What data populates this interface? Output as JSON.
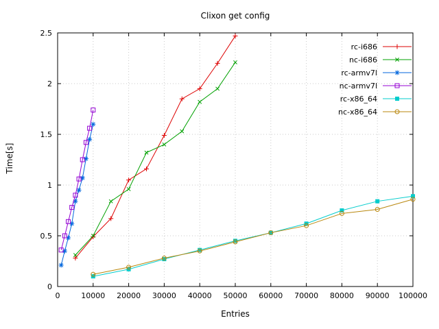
{
  "chart_data": {
    "type": "line",
    "title": "Clixon get config",
    "xlabel": "Entries",
    "ylabel": "Time[s]",
    "xlim": [
      0,
      100000
    ],
    "ylim": [
      0,
      2.5
    ],
    "xticks": [
      0,
      10000,
      20000,
      30000,
      40000,
      50000,
      60000,
      70000,
      80000,
      90000,
      100000
    ],
    "xtick_labels": [
      "0",
      "10000",
      "20000",
      "30000",
      "40000",
      "50000",
      "60000",
      "70000",
      "80000",
      "90000",
      "100000"
    ],
    "yticks": [
      0,
      0.5,
      1,
      1.5,
      2,
      2.5
    ],
    "ytick_labels": [
      "0",
      "0.5",
      "1",
      "1.5",
      "2",
      "2.5"
    ],
    "grid": true,
    "grid_color": "#c8c8c8",
    "axis_color": "#000000",
    "legend_position": "top-right",
    "series": [
      {
        "name": "rc-i686",
        "color": "#dd0000",
        "marker": "plus",
        "x": [
          5000,
          10000,
          15000,
          20000,
          25000,
          30000,
          35000,
          40000,
          45000,
          50000
        ],
        "y": [
          0.28,
          0.49,
          0.67,
          1.05,
          1.16,
          1.49,
          1.85,
          1.95,
          2.2,
          2.47
        ]
      },
      {
        "name": "nc-i686",
        "color": "#00a000",
        "marker": "cross",
        "x": [
          5000,
          10000,
          15000,
          20000,
          25000,
          30000,
          35000,
          40000,
          45000,
          50000
        ],
        "y": [
          0.31,
          0.5,
          0.84,
          0.96,
          1.32,
          1.4,
          1.53,
          1.82,
          1.95,
          2.21
        ]
      },
      {
        "name": "rc-armv7l",
        "color": "#0066dd",
        "marker": "asterisk",
        "x": [
          1000,
          2000,
          3000,
          4000,
          5000,
          6000,
          7000,
          8000,
          9000,
          10000
        ],
        "y": [
          0.21,
          0.35,
          0.48,
          0.62,
          0.84,
          0.95,
          1.07,
          1.26,
          1.45,
          1.6
        ]
      },
      {
        "name": "nc-armv7l",
        "color": "#9400d3",
        "marker": "square-open",
        "x": [
          1000,
          2000,
          3000,
          4000,
          5000,
          6000,
          7000,
          8000,
          9000,
          10000
        ],
        "y": [
          0.36,
          0.5,
          0.64,
          0.78,
          0.9,
          1.06,
          1.25,
          1.42,
          1.56,
          1.74
        ]
      },
      {
        "name": "rc-x86_64",
        "color": "#00cccc",
        "marker": "square-filled",
        "x": [
          10000,
          20000,
          30000,
          40000,
          50000,
          60000,
          70000,
          80000,
          90000,
          100000
        ],
        "y": [
          0.1,
          0.17,
          0.27,
          0.36,
          0.45,
          0.53,
          0.62,
          0.75,
          0.84,
          0.89
        ]
      },
      {
        "name": "nc-x86_64",
        "color": "#b8860b",
        "marker": "circle-open",
        "x": [
          10000,
          20000,
          30000,
          40000,
          50000,
          60000,
          70000,
          80000,
          90000,
          100000
        ],
        "y": [
          0.12,
          0.19,
          0.28,
          0.35,
          0.44,
          0.53,
          0.6,
          0.72,
          0.76,
          0.86
        ]
      }
    ]
  }
}
